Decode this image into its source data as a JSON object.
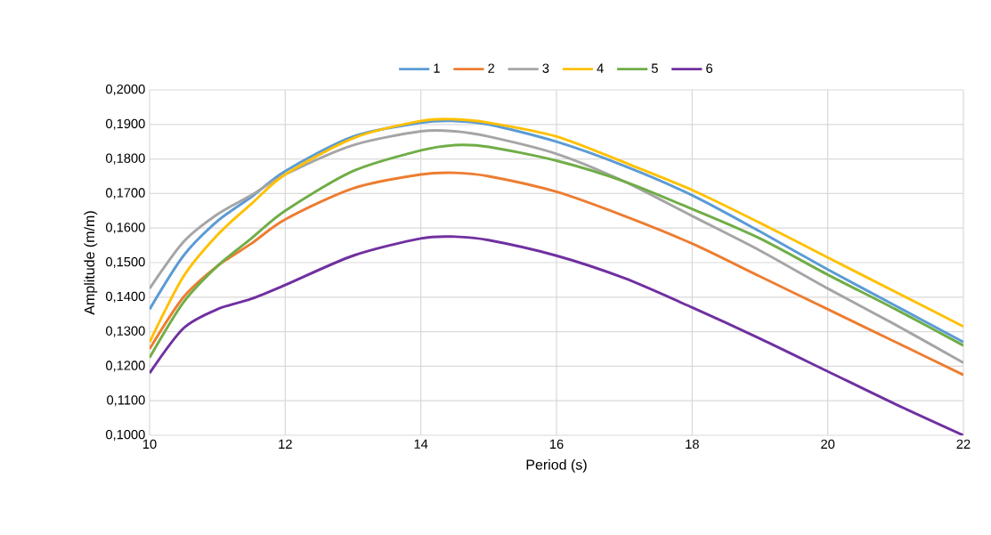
{
  "chart_data": {
    "type": "line",
    "xlabel": "Period (s)",
    "ylabel": "Amplitude (m/m)",
    "x": [
      10,
      10.5,
      11,
      11.5,
      12,
      13,
      14,
      14.5,
      15,
      16,
      17,
      18,
      19,
      20,
      21,
      22
    ],
    "series": [
      {
        "name": "1",
        "color": "#5b9bd5",
        "values": [
          0.1365,
          0.152,
          0.162,
          0.169,
          0.1765,
          0.1865,
          0.1905,
          0.191,
          0.19,
          0.185,
          0.178,
          0.1695,
          0.159,
          0.148,
          0.1375,
          0.127
        ]
      },
      {
        "name": "2",
        "color": "#ed7d31",
        "values": [
          0.125,
          0.14,
          0.149,
          0.1555,
          0.1625,
          0.1715,
          0.1755,
          0.176,
          0.175,
          0.1705,
          0.1635,
          0.1555,
          0.146,
          0.1365,
          0.127,
          0.1175
        ]
      },
      {
        "name": "3",
        "color": "#a5a5a5",
        "values": [
          0.1425,
          0.156,
          0.164,
          0.1695,
          0.1755,
          0.184,
          0.188,
          0.188,
          0.1865,
          0.1815,
          0.1735,
          0.1635,
          0.1535,
          0.1425,
          0.132,
          0.121
        ]
      },
      {
        "name": "4",
        "color": "#ffc000",
        "values": [
          0.127,
          0.146,
          0.158,
          0.167,
          0.1755,
          0.186,
          0.191,
          0.1915,
          0.1905,
          0.1865,
          0.179,
          0.171,
          0.1615,
          0.1515,
          0.1415,
          0.1315
        ]
      },
      {
        "name": "5",
        "color": "#70ad47",
        "values": [
          0.1225,
          0.1385,
          0.149,
          0.157,
          0.165,
          0.1765,
          0.1825,
          0.184,
          0.1835,
          0.1795,
          0.1735,
          0.1655,
          0.157,
          0.1465,
          0.1365,
          0.126
        ]
      },
      {
        "name": "6",
        "color": "#7030a0",
        "values": [
          0.118,
          0.131,
          0.1365,
          0.1395,
          0.1435,
          0.152,
          0.157,
          0.1575,
          0.1565,
          0.152,
          0.1455,
          0.137,
          0.128,
          0.1185,
          0.109,
          0.1
        ]
      }
    ],
    "xlim": [
      10,
      22
    ],
    "xticks": [
      10,
      12,
      14,
      16,
      18,
      20,
      22
    ],
    "ylim": [
      0.1,
      0.2
    ],
    "yticks": [
      {
        "value": 0.1,
        "label": "0,1000"
      },
      {
        "value": 0.11,
        "label": "0,1100"
      },
      {
        "value": 0.12,
        "label": "0,1200"
      },
      {
        "value": 0.13,
        "label": "0,1300"
      },
      {
        "value": 0.14,
        "label": "0,1400"
      },
      {
        "value": 0.15,
        "label": "0,1500"
      },
      {
        "value": 0.16,
        "label": "0,1600"
      },
      {
        "value": 0.17,
        "label": "0,1700"
      },
      {
        "value": 0.18,
        "label": "0,1800"
      },
      {
        "value": 0.19,
        "label": "0,1900"
      },
      {
        "value": 0.2,
        "label": "0,2000"
      }
    ],
    "grid": true,
    "legend": "top",
    "line_style": "solid",
    "marker": "none"
  }
}
